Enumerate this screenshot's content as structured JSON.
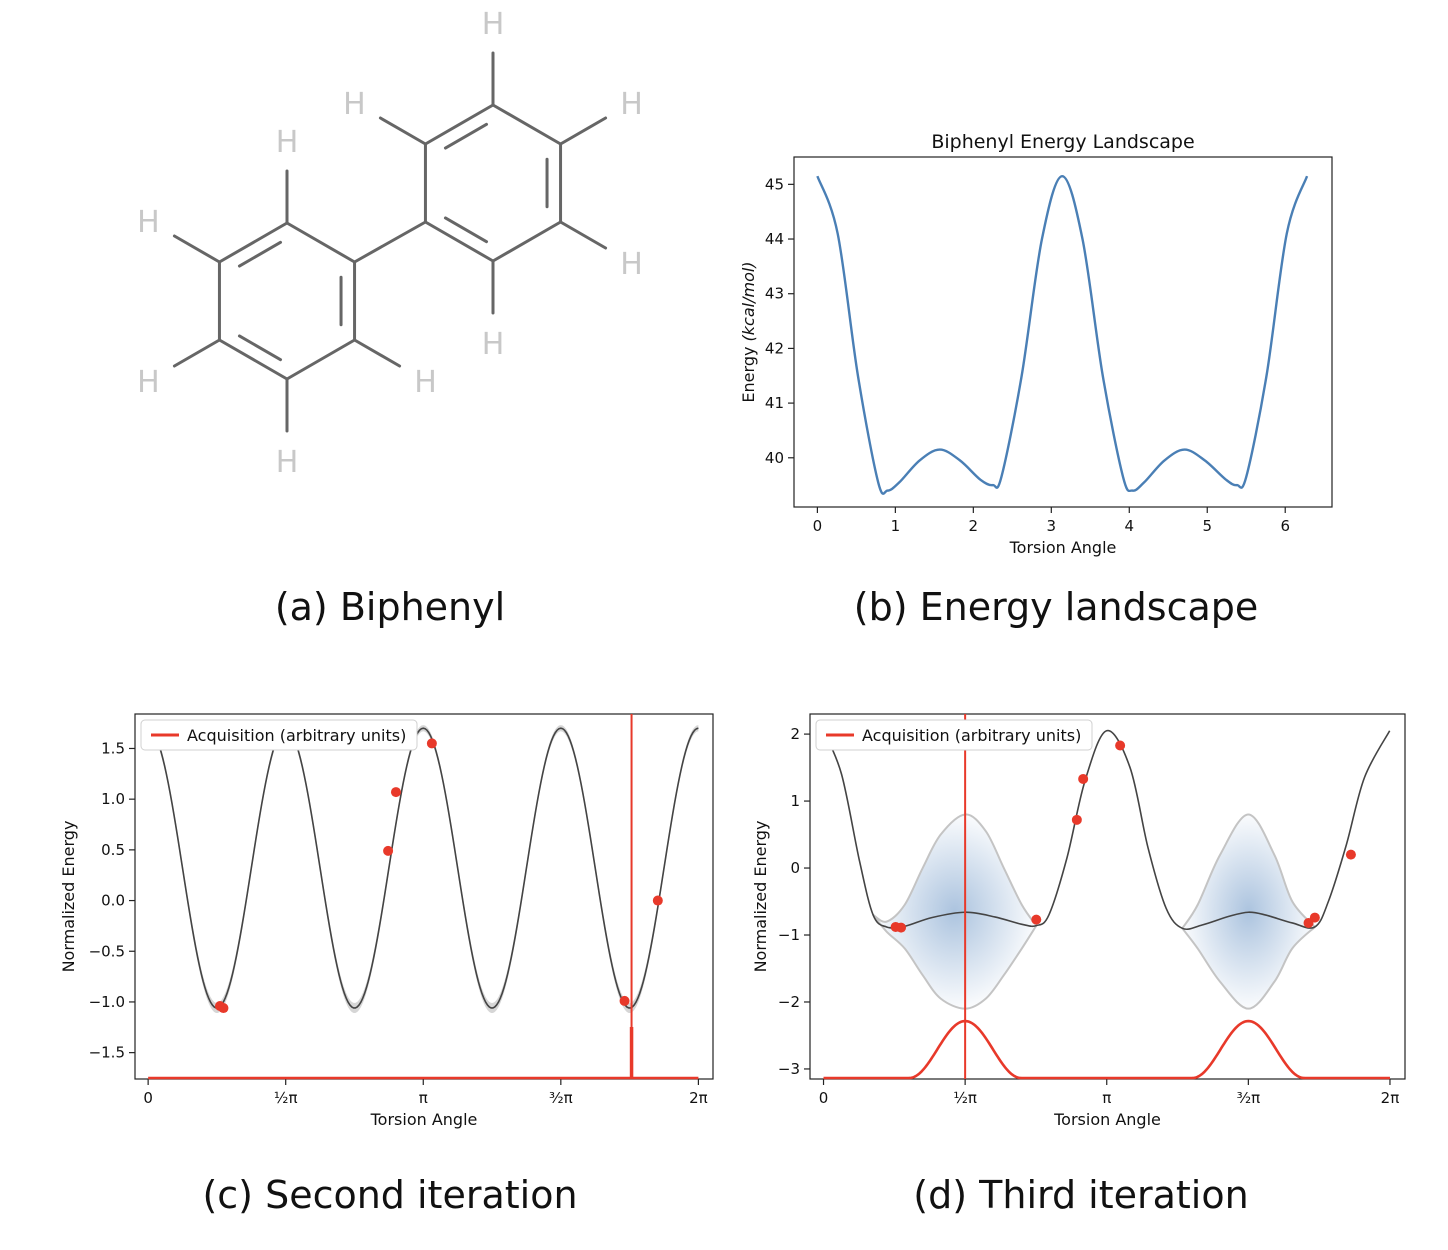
{
  "figure": {
    "captions": [
      "(a) Biphenyl",
      "(b) Energy landscape",
      "(c) Second iteration",
      "(d) Third iteration"
    ]
  },
  "molecule": {
    "hydrogen_label": "H"
  },
  "colors": {
    "energy_line": "#4a7fb5",
    "model_line": "#444444",
    "acquisition": "#e8392a",
    "uncertainty": "#9db9d9",
    "band_edge": "#c4c4c4",
    "bond": "#666666",
    "hydrogen": "#c8c8c8"
  },
  "chart_data": [
    {
      "type": "line",
      "title": "Biphenyl Energy Landscape",
      "xlabel": "Torsion Angle",
      "ylabel": "Energy (kcal/mol)",
      "ylabel_plain": "Energy ",
      "ylabel_italic": "(kcal/mol)",
      "xlim": [
        -0.3,
        6.6
      ],
      "ylim": [
        39.1,
        45.5
      ],
      "xticks": [
        0,
        1,
        2,
        3,
        4,
        5,
        6
      ],
      "yticks": [
        40,
        41,
        42,
        43,
        44,
        45
      ],
      "grid": false,
      "series": [
        {
          "x": [
            0,
            0.26,
            0.52,
            0.78,
            0.9,
            1.05,
            1.31,
            1.57,
            1.83,
            2.09,
            2.25,
            2.36,
            2.62,
            2.88,
            3.14,
            3.4,
            3.66,
            3.92,
            4.04,
            4.19,
            4.45,
            4.71,
            4.97,
            5.24,
            5.38,
            5.5,
            5.76,
            6.02,
            6.28
          ],
          "y": [
            45.15,
            44.1,
            41.5,
            39.55,
            39.4,
            39.55,
            39.95,
            40.15,
            39.95,
            39.6,
            39.5,
            39.65,
            41.5,
            44.0,
            45.15,
            44.0,
            41.5,
            39.65,
            39.4,
            39.55,
            39.95,
            40.15,
            39.95,
            39.6,
            39.5,
            39.65,
            41.5,
            44.1,
            45.15
          ]
        }
      ]
    },
    {
      "type": "line",
      "title": "",
      "xlabel": "Torsion Angle",
      "ylabel": "Normalized Energy",
      "xlim": [
        -0.15,
        6.45
      ],
      "ylim": [
        -1.76,
        1.84
      ],
      "xticks": [
        0,
        1.5708,
        3.1416,
        4.7124,
        6.2832
      ],
      "xtick_labels": [
        "0",
        "½π",
        "π",
        "³⁄₂π",
        "2π"
      ],
      "yticks": [
        -1.5,
        -1.0,
        -0.5,
        0.0,
        0.5,
        1.0,
        1.5
      ],
      "ytick_labels": [
        "−1.5",
        "−1.0",
        "−0.5",
        "0.0",
        "0.5",
        "1.0",
        "1.5"
      ],
      "legend": {
        "label": "Acquisition (arbitrary units)",
        "position": "upper-left"
      },
      "mean_amplitude": 1.38,
      "mean_offset": 0.32,
      "mean_frequency": 4,
      "observations": [
        {
          "x": 0.82,
          "y": -1.04
        },
        {
          "x": 0.86,
          "y": -1.06
        },
        {
          "x": 2.74,
          "y": 0.49
        },
        {
          "x": 2.83,
          "y": 1.07
        },
        {
          "x": 3.24,
          "y": 1.55
        },
        {
          "x": 5.44,
          "y": -0.99
        },
        {
          "x": 5.82,
          "y": 0.0
        }
      ],
      "acquisition_peak_x": 5.52,
      "acquisition_baseline": -1.76
    },
    {
      "type": "line",
      "title": "",
      "xlabel": "Torsion Angle",
      "ylabel": "Normalized Energy",
      "xlim": [
        -0.15,
        6.45
      ],
      "ylim": [
        -3.15,
        2.3
      ],
      "xticks": [
        0,
        1.5708,
        3.1416,
        4.7124,
        6.2832
      ],
      "xtick_labels": [
        "0",
        "½π",
        "π",
        "³⁄₂π",
        "2π"
      ],
      "yticks": [
        -3,
        -2,
        -1,
        0,
        1,
        2
      ],
      "ytick_labels": [
        "−3",
        "−2",
        "−1",
        "0",
        "1",
        "2"
      ],
      "legend": {
        "label": "Acquisition (arbitrary units)",
        "position": "upper-left"
      },
      "mean_curve": {
        "x": [
          0,
          0.2,
          0.4,
          0.55,
          0.7,
          0.9,
          1.2,
          1.5708,
          1.9,
          2.2,
          2.36,
          2.5,
          2.7,
          2.9,
          3.14,
          3.4,
          3.6,
          3.8,
          3.98,
          4.2,
          4.5,
          4.7124,
          4.9,
          5.2,
          5.45,
          5.6,
          5.8,
          6.0,
          6.28
        ],
        "y": [
          2.05,
          1.4,
          0.1,
          -0.7,
          -0.88,
          -0.87,
          -0.74,
          -0.66,
          -0.73,
          -0.84,
          -0.86,
          -0.7,
          0.15,
          1.3,
          2.05,
          1.5,
          0.3,
          -0.6,
          -0.9,
          -0.85,
          -0.72,
          -0.66,
          -0.7,
          -0.82,
          -0.88,
          -0.5,
          0.35,
          1.35,
          2.05
        ]
      },
      "band_upper": {
        "x": [
          0.55,
          0.7,
          0.9,
          1.1,
          1.3,
          1.5708,
          1.8,
          2.0,
          2.2,
          2.36,
          3.98,
          4.15,
          4.4,
          4.7124,
          5.0,
          5.2,
          5.45
        ],
        "y": [
          -0.7,
          -0.8,
          -0.55,
          0.0,
          0.5,
          0.8,
          0.55,
          0.0,
          -0.55,
          -0.86,
          -0.9,
          -0.55,
          0.2,
          0.8,
          0.2,
          -0.5,
          -0.88
        ]
      },
      "band_lower": {
        "x": [
          0.55,
          0.7,
          0.9,
          1.1,
          1.3,
          1.5708,
          1.8,
          2.0,
          2.2,
          2.36,
          3.98,
          4.15,
          4.4,
          4.7124,
          5.0,
          5.2,
          5.45
        ],
        "y": [
          -0.7,
          -0.95,
          -1.2,
          -1.6,
          -1.95,
          -2.1,
          -1.95,
          -1.6,
          -1.2,
          -0.86,
          -0.9,
          -1.2,
          -1.7,
          -2.1,
          -1.7,
          -1.2,
          -0.88
        ]
      },
      "observations": [
        {
          "x": 0.8,
          "y": -0.88
        },
        {
          "x": 0.86,
          "y": -0.89
        },
        {
          "x": 2.36,
          "y": -0.77
        },
        {
          "x": 2.81,
          "y": 0.72
        },
        {
          "x": 2.88,
          "y": 1.33
        },
        {
          "x": 3.29,
          "y": 1.83
        },
        {
          "x": 5.38,
          "y": -0.82
        },
        {
          "x": 5.45,
          "y": -0.74
        },
        {
          "x": 5.85,
          "y": 0.2
        }
      ],
      "acquisition_line_x": 1.5708,
      "acquisition_peaks": [
        {
          "center": 1.5708,
          "height": -2.3
        },
        {
          "center": 4.7124,
          "height": -2.3
        }
      ],
      "acquisition_baseline": -3.15
    }
  ]
}
